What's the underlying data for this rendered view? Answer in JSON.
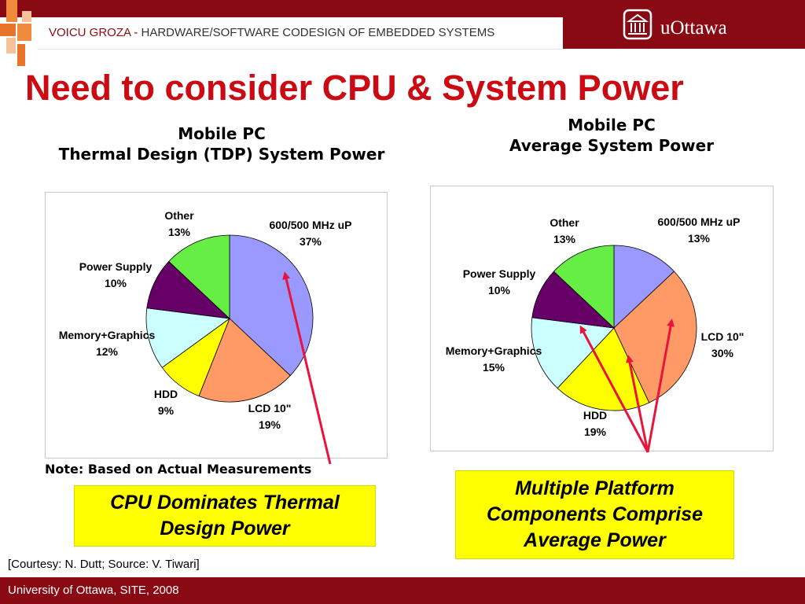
{
  "header": {
    "author": "VOICU GROZA - ",
    "course": "HARDWARE/SOFTWARE CODESIGN OF EMBEDDED SYSTEMS",
    "brand": "uOttawa",
    "logo_icon": "university-building-icon"
  },
  "title": "Need to consider CPU & System Power",
  "colors": {
    "header_red": "#8a0a14",
    "title_red": "#cc0a14",
    "callout_yellow": "#ffff00",
    "arrow_red": "#e8143c"
  },
  "chart_data": [
    {
      "type": "pie",
      "title_line1": "Mobile PC",
      "title_line2": "Thermal Design (TDP) System Power",
      "slices": [
        {
          "label": "600/500 MHz  uP",
          "value": 37,
          "display": "37%",
          "color": "#9999ff"
        },
        {
          "label": "LCD 10\"",
          "value": 19,
          "display": "19%",
          "color": "#ff9966"
        },
        {
          "label": "HDD",
          "value": 9,
          "display": "9%",
          "color": "#ffff00"
        },
        {
          "label": "Memory+Graphics",
          "value": 12,
          "display": "12%",
          "color": "#ccffff"
        },
        {
          "label": "Power Supply",
          "value": 10,
          "display": "10%",
          "color": "#660066"
        },
        {
          "label": "Other",
          "value": 13,
          "display": "13%",
          "color": "#66ee44"
        }
      ]
    },
    {
      "type": "pie",
      "title_line1": "Mobile PC",
      "title_line2": "Average System Power",
      "slices": [
        {
          "label": "600/500 MHz uP",
          "value": 13,
          "display": "13%",
          "color": "#9999ff"
        },
        {
          "label": "LCD 10\"",
          "value": 30,
          "display": "30%",
          "color": "#ff9966"
        },
        {
          "label": "HDD",
          "value": 19,
          "display": "19%",
          "color": "#ffff00"
        },
        {
          "label": "Memory+Graphics",
          "value": 15,
          "display": "15%",
          "color": "#ccffff"
        },
        {
          "label": "Power Supply",
          "value": 10,
          "display": "10%",
          "color": "#660066"
        },
        {
          "label": "Other",
          "value": 13,
          "display": "13%",
          "color": "#66ee44"
        }
      ]
    }
  ],
  "note": "Note: Based on Actual Measurements",
  "callouts": {
    "left": "CPU Dominates Thermal\nDesign Power",
    "right": "Multiple Platform\nComponents Comprise\nAverage Power"
  },
  "courtesy": "[Courtesy: N. Dutt; Source: V. Tiwari]",
  "footer": "University of Ottawa, SITE, 2008"
}
